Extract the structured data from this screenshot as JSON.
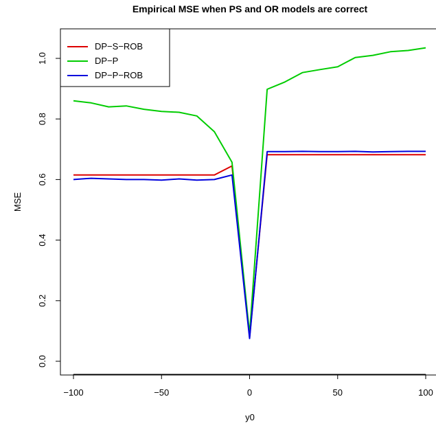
{
  "chart_data": {
    "type": "line",
    "title": "Empirical MSE when PS and OR models are correct",
    "xlabel": "y0",
    "ylabel": "MSE",
    "xlim": [
      -100,
      100
    ],
    "ylim": [
      0,
      1.05
    ],
    "x_ticks": [
      "-100",
      "-50",
      "0",
      "50",
      "100"
    ],
    "y_ticks": [
      "0.0",
      "0.2",
      "0.4",
      "0.6",
      "0.8",
      "1.0"
    ],
    "legend_position": "top-left",
    "x": [
      -100,
      -90,
      -80,
      -70,
      -60,
      -50,
      -40,
      -30,
      -20,
      -10,
      0,
      10,
      20,
      30,
      40,
      50,
      60,
      70,
      80,
      90,
      100
    ],
    "series": [
      {
        "name": "DP−S−ROB",
        "color": "#dd0000",
        "values": [
          0.615,
          0.615,
          0.615,
          0.615,
          0.615,
          0.615,
          0.615,
          0.615,
          0.615,
          0.645,
          0.08,
          0.682,
          0.682,
          0.682,
          0.682,
          0.682,
          0.682,
          0.682,
          0.682,
          0.682,
          0.682
        ]
      },
      {
        "name": "DP−P",
        "color": "#00cc00",
        "values": [
          0.86,
          0.853,
          0.84,
          0.843,
          0.832,
          0.825,
          0.822,
          0.81,
          0.758,
          0.657,
          0.09,
          0.898,
          0.922,
          0.953,
          0.963,
          0.972,
          1.003,
          1.01,
          1.022,
          1.026,
          1.035
        ]
      },
      {
        "name": "DP−P−ROB",
        "color": "#0000dd",
        "values": [
          0.6,
          0.604,
          0.602,
          0.6,
          0.6,
          0.598,
          0.602,
          0.598,
          0.6,
          0.615,
          0.075,
          0.692,
          0.692,
          0.693,
          0.692,
          0.692,
          0.693,
          0.691,
          0.692,
          0.693,
          0.693
        ]
      }
    ]
  }
}
